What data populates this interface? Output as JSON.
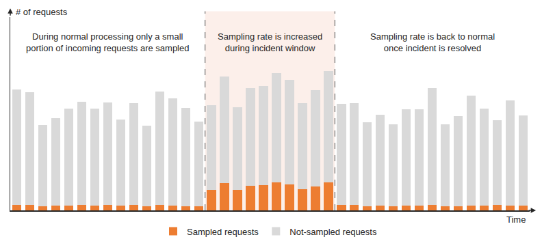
{
  "chart_data": {
    "type": "bar",
    "stacked": true,
    "x_label": "Time",
    "y_label": "# of requests",
    "categories": [
      null,
      null,
      null,
      null,
      null,
      null,
      null,
      null,
      null,
      null,
      null,
      null,
      null,
      null,
      null,
      null,
      null,
      null,
      null,
      null,
      null,
      null,
      null,
      null,
      null,
      null,
      null,
      null,
      null,
      null,
      null,
      null,
      null,
      null,
      null,
      null,
      null,
      null,
      null,
      null
    ],
    "series": [
      {
        "name": "Sampled requests",
        "color": "#ed7d31",
        "values": [
          9,
          9,
          6,
          7,
          7,
          8,
          7,
          8,
          7,
          8,
          6,
          8,
          7,
          6,
          6,
          32,
          42,
          32,
          38,
          39,
          43,
          40,
          33,
          37,
          43,
          8,
          8,
          6,
          7,
          6,
          7,
          7,
          9,
          6,
          6,
          7,
          7,
          8,
          7,
          7
        ]
      },
      {
        "name": "Not-sampled requests",
        "color": "#d9d9d9",
        "values": [
          179,
          174,
          127,
          136,
          151,
          161,
          151,
          159,
          134,
          158,
          125,
          176,
          167,
          153,
          132,
          131,
          166,
          128,
          152,
          154,
          170,
          162,
          133,
          150,
          173,
          157,
          158,
          131,
          141,
          128,
          150,
          150,
          181,
          128,
          140,
          171,
          151,
          132,
          164,
          140
        ]
      }
    ],
    "ylim": [
      0,
      300
    ],
    "yticks": [],
    "tick_labels": false,
    "grid": false,
    "legend": "bottom",
    "shaded_range": [
      15,
      24
    ],
    "annotations": [
      "During normal processing only a small\nportion of incoming requests are sampled",
      "Sampling rate is increased\nduring incident window",
      "Sampling rate is back to normal\nonce incident is resolved"
    ]
  }
}
